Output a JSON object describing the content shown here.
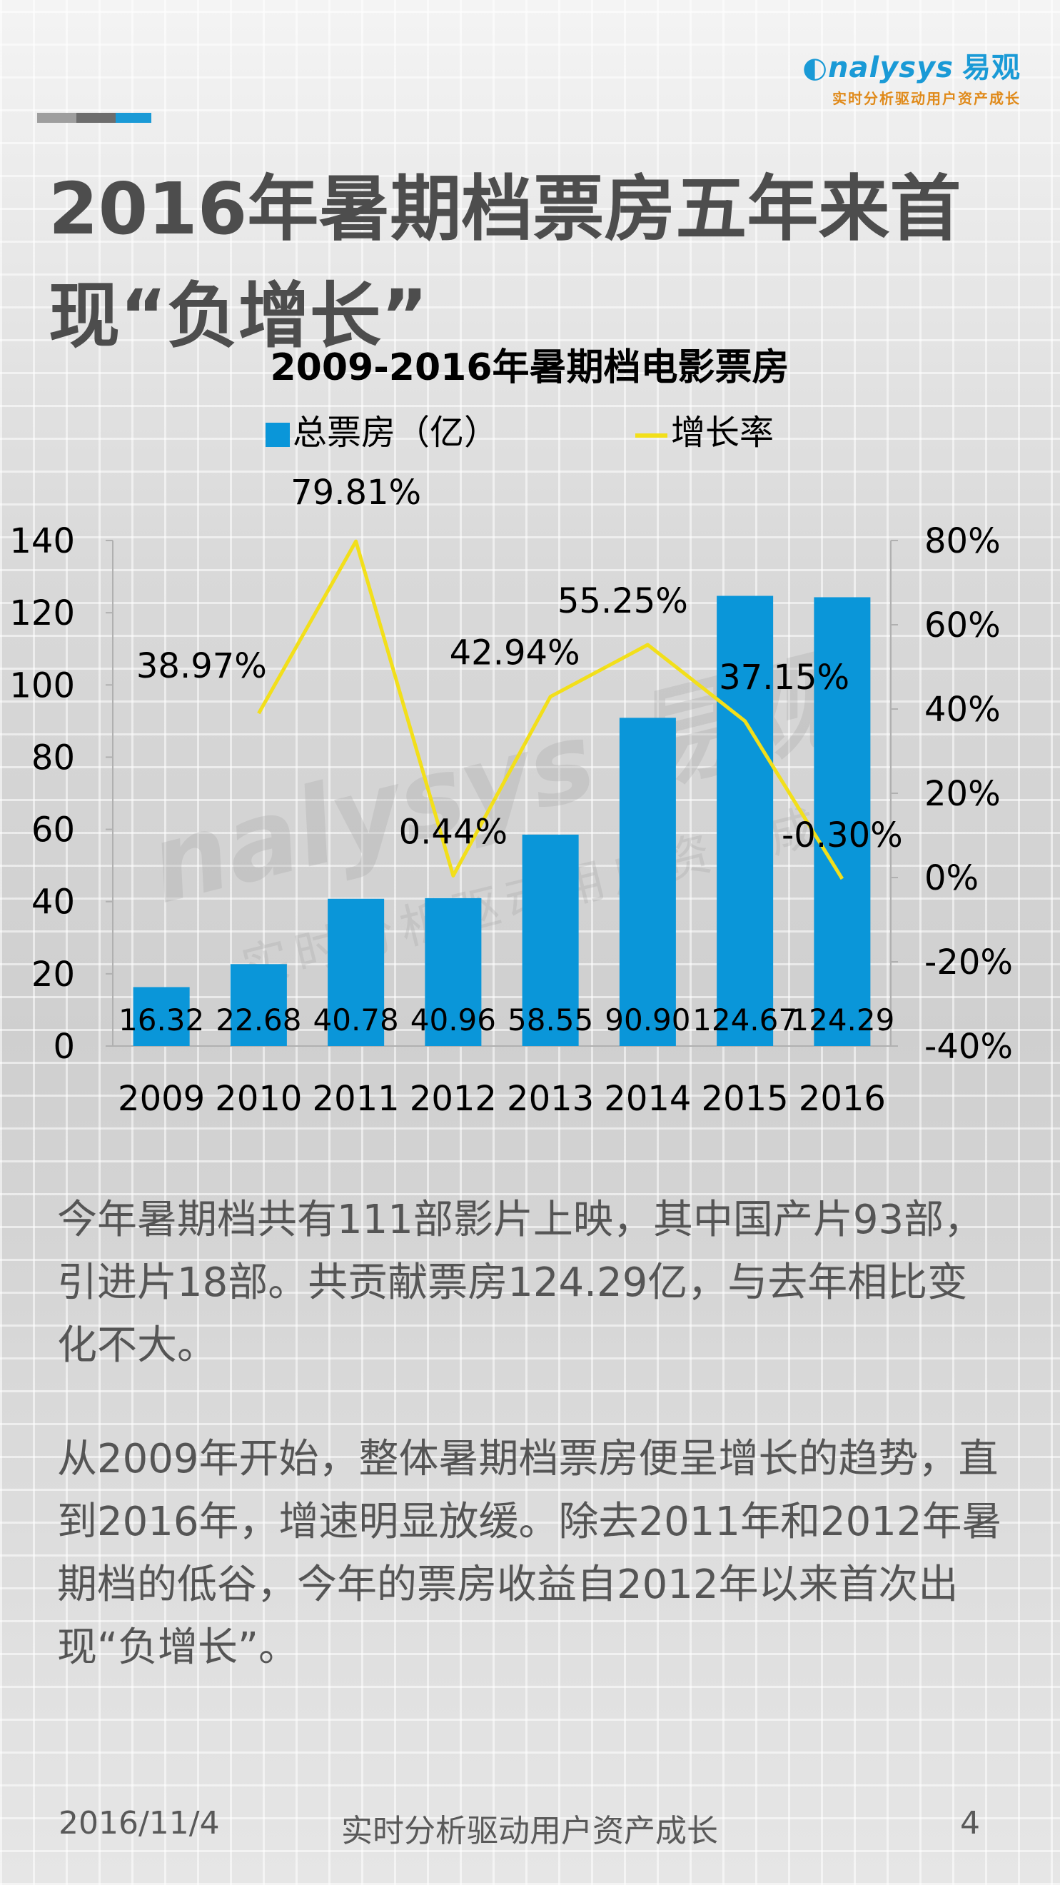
{
  "brand": {
    "logo_text": "nalysys",
    "logo_cn": "易观",
    "tagline": "实时分析驱动用户资产成长",
    "accent": "#1a9ad6",
    "tagline_color": "#e08a1a"
  },
  "header": {
    "title": "2016年暑期档票房五年来首现“负增长”"
  },
  "chart_data": {
    "type": "bar",
    "title": "2009-2016年暑期档电影票房",
    "categories": [
      "2009",
      "2010",
      "2011",
      "2012",
      "2013",
      "2014",
      "2015",
      "2016"
    ],
    "series": [
      {
        "name": "总票房（亿）",
        "type": "bar",
        "axis": "left",
        "color": "#0a96d9",
        "values": [
          16.32,
          22.68,
          40.78,
          40.96,
          58.55,
          90.9,
          124.67,
          124.29
        ],
        "labels": [
          "16.32",
          "22.68",
          "40.78",
          "40.96",
          "58.55",
          "90.90",
          "124.67",
          "124.29"
        ]
      },
      {
        "name": "增长率",
        "type": "line",
        "axis": "right",
        "color": "#f2df1a",
        "values": [
          null,
          38.97,
          79.81,
          0.44,
          42.94,
          55.25,
          37.15,
          -0.3
        ],
        "labels": [
          "",
          "38.97%",
          "79.81%",
          "0.44%",
          "42.94%",
          "55.25%",
          "37.15%",
          "-0.30%"
        ]
      }
    ],
    "y_left": {
      "min": 0,
      "max": 140,
      "ticks": [
        "0",
        "20",
        "40",
        "60",
        "80",
        "100",
        "120",
        "140"
      ]
    },
    "y_right": {
      "min": -40,
      "max": 80,
      "ticks": [
        "-40%",
        "-20%",
        "0%",
        "20%",
        "40%",
        "60%",
        "80%"
      ]
    },
    "legend_position": "top",
    "grid": false
  },
  "watermark": {
    "text": "nalysys 易观",
    "sub": "实时分析驱动用户资产成长"
  },
  "body": {
    "paragraph1": "今年暑期档共有111部影片上映，其中国产片93部，引进片18部。共贡献票房124.29亿，与去年相比变化不大。",
    "paragraph2": "从2009年开始，整体暑期档票房便呈增长的趋势，直到2016年，增速明显放缓。除去2011年和2012年暑期档的低谷，今年的票房收益自2012年以来首次出现“负增长”。"
  },
  "footer": {
    "date": "2016/11/4",
    "tagline": "实时分析驱动用户资产成长",
    "page_number": "4"
  }
}
